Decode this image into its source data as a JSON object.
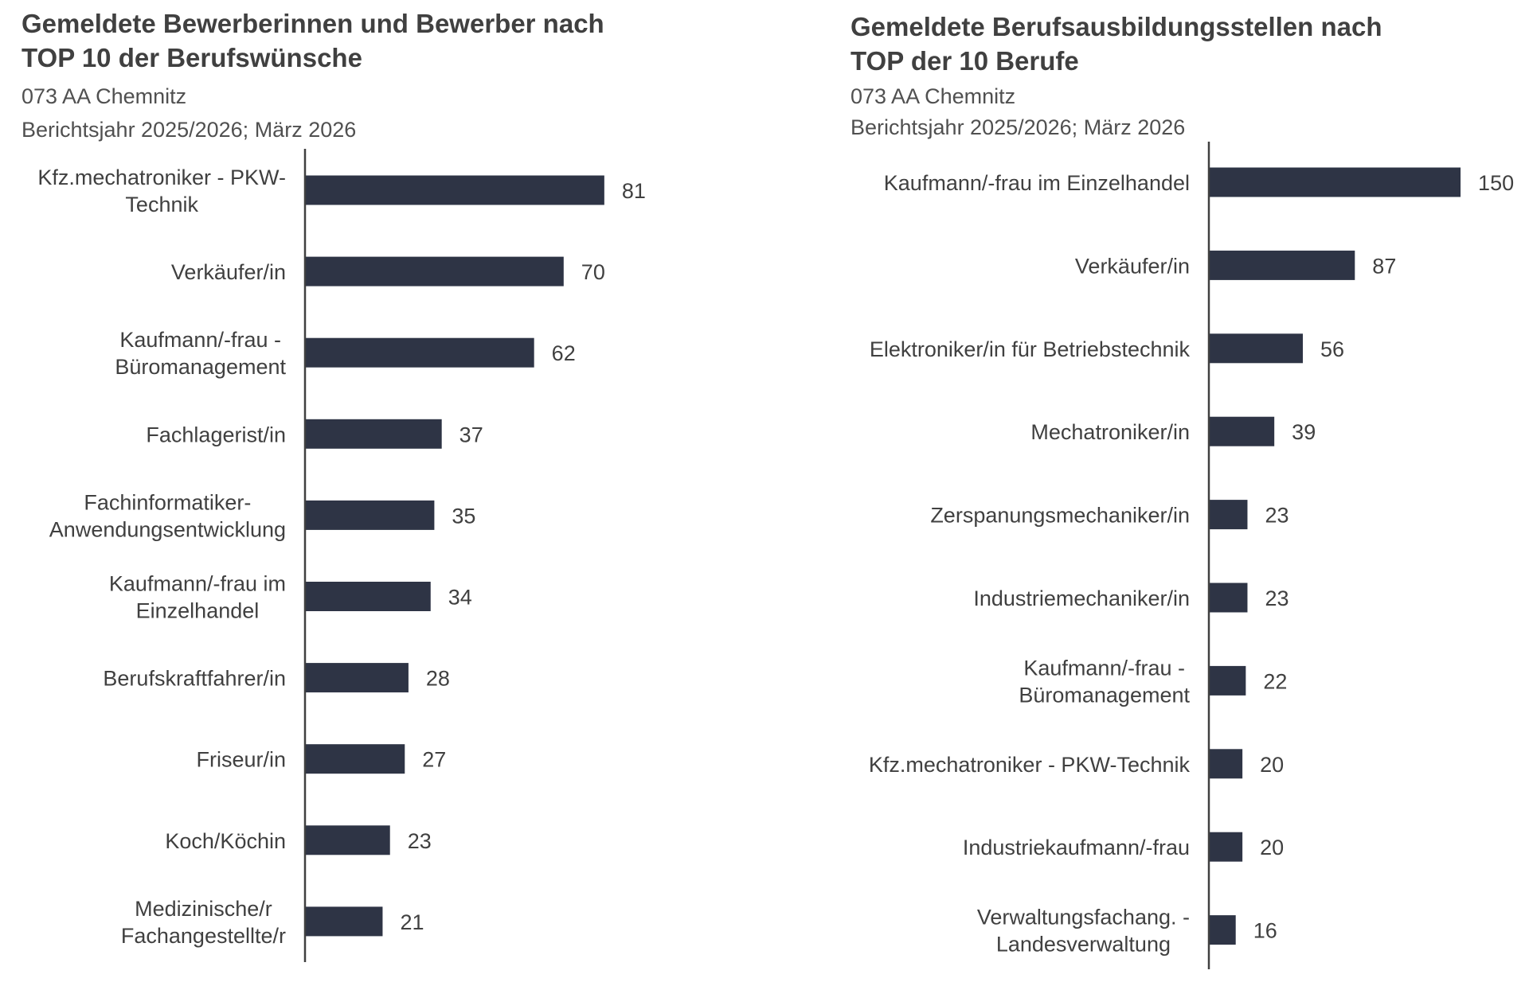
{
  "colors": {
    "bar": "#2e3445",
    "axis": "#404040",
    "text": "#404040"
  },
  "chart_data": [
    {
      "type": "bar",
      "orientation": "horizontal",
      "title": "Gemeldete Bewerberinnen und Bewerber nach TOP 10 der Berufswünsche",
      "title_lines": [
        "Gemeldete Bewerberinnen und Bewerber nach",
        "TOP 10 der Berufswünsche"
      ],
      "subtitle_lines": [
        "073 AA Chemnitz",
        "Berichtsjahr 2025/2026; März 2026"
      ],
      "categories": [
        [
          "Kfz.mechatroniker - PKW-",
          "Technik"
        ],
        [
          "Verkäufer/in"
        ],
        [
          "Kaufmann/-frau -",
          "Büromanagement"
        ],
        [
          "Fachlagerist/in"
        ],
        [
          "Fachinformatiker-",
          "Anwendungsentwicklung"
        ],
        [
          "Kaufmann/-frau im",
          "Einzelhandel"
        ],
        [
          "Berufskraftfahrer/in"
        ],
        [
          "Friseur/in"
        ],
        [
          "Koch/Köchin"
        ],
        [
          "Medizinische/r",
          "Fachangestellte/r"
        ]
      ],
      "values": [
        81,
        70,
        62,
        37,
        35,
        34,
        28,
        27,
        23,
        21
      ],
      "data_labels": true,
      "grid": false,
      "xaxis_visible": false
    },
    {
      "type": "bar",
      "orientation": "horizontal",
      "title": "Gemeldete Berufsausbildungsstellen nach TOP der 10 Berufe",
      "title_lines": [
        "Gemeldete Berufsausbildungsstellen nach",
        "TOP der 10 Berufe"
      ],
      "subtitle_lines": [
        "073 AA Chemnitz",
        "Berichtsjahr 2025/2026; März 2026"
      ],
      "categories": [
        [
          "Kaufmann/-frau im Einzelhandel"
        ],
        [
          "Verkäufer/in"
        ],
        [
          "Elektroniker/in für Betriebstechnik"
        ],
        [
          "Mechatroniker/in"
        ],
        [
          "Zerspanungsmechaniker/in"
        ],
        [
          "Industriemechaniker/in"
        ],
        [
          "Kaufmann/-frau -",
          "Büromanagement"
        ],
        [
          "Kfz.mechatroniker - PKW-Technik"
        ],
        [
          "Industriekaufmann/-frau"
        ],
        [
          "Verwaltungsfachang. -",
          "Landesverwaltung"
        ]
      ],
      "values": [
        150,
        87,
        56,
        39,
        23,
        23,
        22,
        20,
        20,
        16
      ],
      "data_labels": true,
      "grid": false,
      "xaxis_visible": false
    }
  ]
}
